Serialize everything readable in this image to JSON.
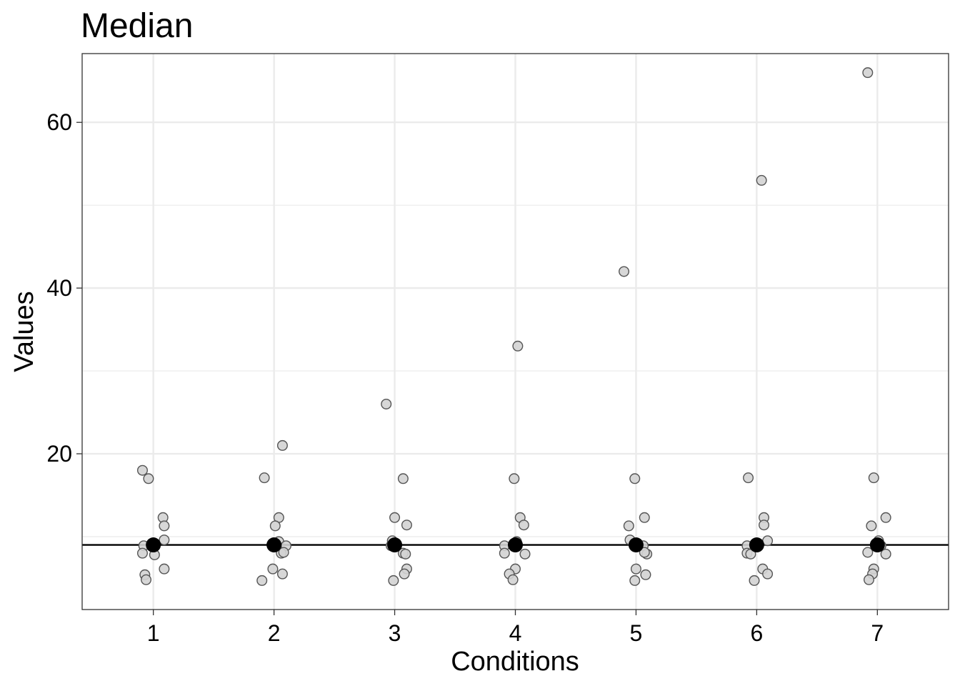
{
  "chart_data": {
    "type": "scatter",
    "title": "Median",
    "xlabel": "Conditions",
    "ylabel": "Values",
    "categories": [
      "1",
      "2",
      "3",
      "4",
      "5",
      "6",
      "7"
    ],
    "xlim": [
      0.41,
      7.59
    ],
    "ylim": [
      1.2,
      68.3
    ],
    "y_ticks": [
      20,
      40,
      60
    ],
    "y_tick_labels": [
      "20",
      "40",
      "60"
    ],
    "grid": true,
    "reference_line": {
      "y": 9
    },
    "colors": {
      "points_fill": "#d3d3d3",
      "points_stroke": "#555555",
      "median": "#000000",
      "grid": "#ebebeb"
    },
    "series": [
      {
        "values": [
          {
            "x": 0.91,
            "y": 18
          },
          {
            "x": 0.96,
            "y": 17
          },
          {
            "x": 1.08,
            "y": 12.3
          },
          {
            "x": 1.09,
            "y": 11.3
          },
          {
            "x": 1.09,
            "y": 9.6
          },
          {
            "x": 0.92,
            "y": 8.9
          },
          {
            "x": 0.91,
            "y": 8
          },
          {
            "x": 1.01,
            "y": 7.8
          },
          {
            "x": 1.09,
            "y": 6.1
          },
          {
            "x": 0.93,
            "y": 5.4
          },
          {
            "x": 0.94,
            "y": 4.8
          },
          {
            "x": 1.92,
            "y": 17.1
          },
          {
            "x": 2.07,
            "y": 21
          },
          {
            "x": 2.04,
            "y": 12.3
          },
          {
            "x": 2.01,
            "y": 11.3
          },
          {
            "x": 2.04,
            "y": 9.4
          },
          {
            "x": 2.1,
            "y": 8.9
          },
          {
            "x": 2.06,
            "y": 8
          },
          {
            "x": 2.08,
            "y": 8.1
          },
          {
            "x": 1.99,
            "y": 6.1
          },
          {
            "x": 2.07,
            "y": 5.5
          },
          {
            "x": 1.9,
            "y": 4.7
          },
          {
            "x": 2.93,
            "y": 26
          },
          {
            "x": 3.07,
            "y": 17
          },
          {
            "x": 3.0,
            "y": 12.3
          },
          {
            "x": 3.1,
            "y": 11.4
          },
          {
            "x": 2.98,
            "y": 9.5
          },
          {
            "x": 2.97,
            "y": 8.9
          },
          {
            "x": 3.07,
            "y": 8
          },
          {
            "x": 3.09,
            "y": 7.9
          },
          {
            "x": 3.1,
            "y": 6.1
          },
          {
            "x": 3.08,
            "y": 5.5
          },
          {
            "x": 2.99,
            "y": 4.7
          },
          {
            "x": 4.02,
            "y": 33
          },
          {
            "x": 3.99,
            "y": 17
          },
          {
            "x": 4.04,
            "y": 12.3
          },
          {
            "x": 4.07,
            "y": 11.4
          },
          {
            "x": 4.01,
            "y": 9.4
          },
          {
            "x": 3.91,
            "y": 8.9
          },
          {
            "x": 3.91,
            "y": 8
          },
          {
            "x": 4.08,
            "y": 7.9
          },
          {
            "x": 4.0,
            "y": 6.1
          },
          {
            "x": 3.95,
            "y": 5.5
          },
          {
            "x": 3.98,
            "y": 4.8
          },
          {
            "x": 4.9,
            "y": 42
          },
          {
            "x": 4.99,
            "y": 17
          },
          {
            "x": 5.07,
            "y": 12.3
          },
          {
            "x": 4.94,
            "y": 11.3
          },
          {
            "x": 4.95,
            "y": 9.6
          },
          {
            "x": 5.06,
            "y": 8.9
          },
          {
            "x": 5.09,
            "y": 7.9
          },
          {
            "x": 5.07,
            "y": 8.1
          },
          {
            "x": 5.0,
            "y": 6.1
          },
          {
            "x": 5.08,
            "y": 5.4
          },
          {
            "x": 4.99,
            "y": 4.7
          },
          {
            "x": 6.04,
            "y": 53
          },
          {
            "x": 5.93,
            "y": 17.1
          },
          {
            "x": 6.06,
            "y": 12.3
          },
          {
            "x": 6.06,
            "y": 11.4
          },
          {
            "x": 6.09,
            "y": 9.5
          },
          {
            "x": 5.92,
            "y": 8.9
          },
          {
            "x": 5.92,
            "y": 8
          },
          {
            "x": 5.95,
            "y": 7.9
          },
          {
            "x": 6.05,
            "y": 6.1
          },
          {
            "x": 6.09,
            "y": 5.5
          },
          {
            "x": 5.98,
            "y": 4.7
          },
          {
            "x": 6.92,
            "y": 66
          },
          {
            "x": 6.97,
            "y": 17.1
          },
          {
            "x": 7.07,
            "y": 12.3
          },
          {
            "x": 6.95,
            "y": 11.3
          },
          {
            "x": 7.01,
            "y": 9.5
          },
          {
            "x": 7.03,
            "y": 8.9
          },
          {
            "x": 6.92,
            "y": 8.1
          },
          {
            "x": 7.07,
            "y": 7.9
          },
          {
            "x": 6.97,
            "y": 6.1
          },
          {
            "x": 6.96,
            "y": 5.5
          },
          {
            "x": 6.93,
            "y": 4.8
          }
        ]
      },
      {
        "values": [
          {
            "x": 1,
            "y": 9
          },
          {
            "x": 2,
            "y": 9
          },
          {
            "x": 3,
            "y": 9
          },
          {
            "x": 4,
            "y": 9
          },
          {
            "x": 5,
            "y": 9
          },
          {
            "x": 6,
            "y": 9
          },
          {
            "x": 7,
            "y": 9
          }
        ]
      }
    ]
  }
}
